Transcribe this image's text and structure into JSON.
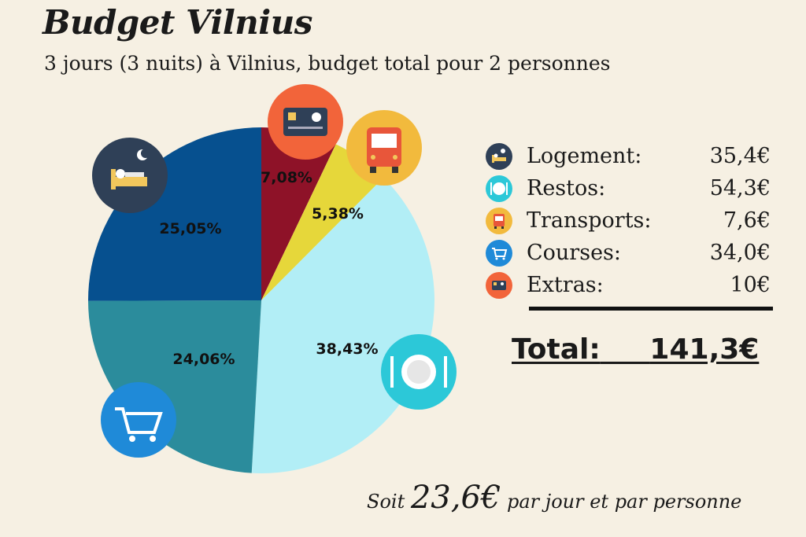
{
  "title": "Budget Vilnius",
  "subtitle": "3 jours (3 nuits) à Vilnius, budget total pour 2 personnes",
  "chart_data": {
    "type": "pie",
    "categories": [
      "Logement",
      "Restos",
      "Transports",
      "Courses",
      "Extras"
    ],
    "values": [
      25.05,
      38.43,
      5.38,
      24.06,
      7.08
    ],
    "labels": [
      "25,05%",
      "38,43%",
      "5,38%",
      "24,06%",
      "7,08%"
    ],
    "colors": [
      "#06508f",
      "#b2eef6",
      "#e6d73a",
      "#2b8c9c",
      "#8e1228"
    ]
  },
  "icons": {
    "Logement": {
      "name": "bed-icon",
      "bg": "#2f4057"
    },
    "Restos": {
      "name": "plate-icon",
      "bg": "#2cc8d8"
    },
    "Transports": {
      "name": "bus-icon",
      "bg": "#f2ba3d"
    },
    "Courses": {
      "name": "cart-icon",
      "bg": "#1f8ad8"
    },
    "Extras": {
      "name": "card-icon",
      "bg": "#f2643a"
    }
  },
  "legend": [
    {
      "label": "Logement:",
      "value": "35,4€",
      "icon": "bed-icon",
      "color": "#2f4057"
    },
    {
      "label": "Restos:",
      "value": "54,3€",
      "icon": "plate-icon",
      "color": "#2cc8d8"
    },
    {
      "label": "Transports:",
      "value": "7,6€",
      "icon": "bus-icon",
      "color": "#f2ba3d"
    },
    {
      "label": "Courses:",
      "value": "34,0€",
      "icon": "cart-icon",
      "color": "#1f8ad8"
    },
    {
      "label": "Extras:",
      "value": "10€",
      "icon": "card-icon",
      "color": "#f2643a"
    }
  ],
  "total": {
    "label": "Total:",
    "value": "141,3€"
  },
  "footer": {
    "prefix": "Soit ",
    "amount": "23,6€",
    "suffix": " par jour et par personne"
  }
}
